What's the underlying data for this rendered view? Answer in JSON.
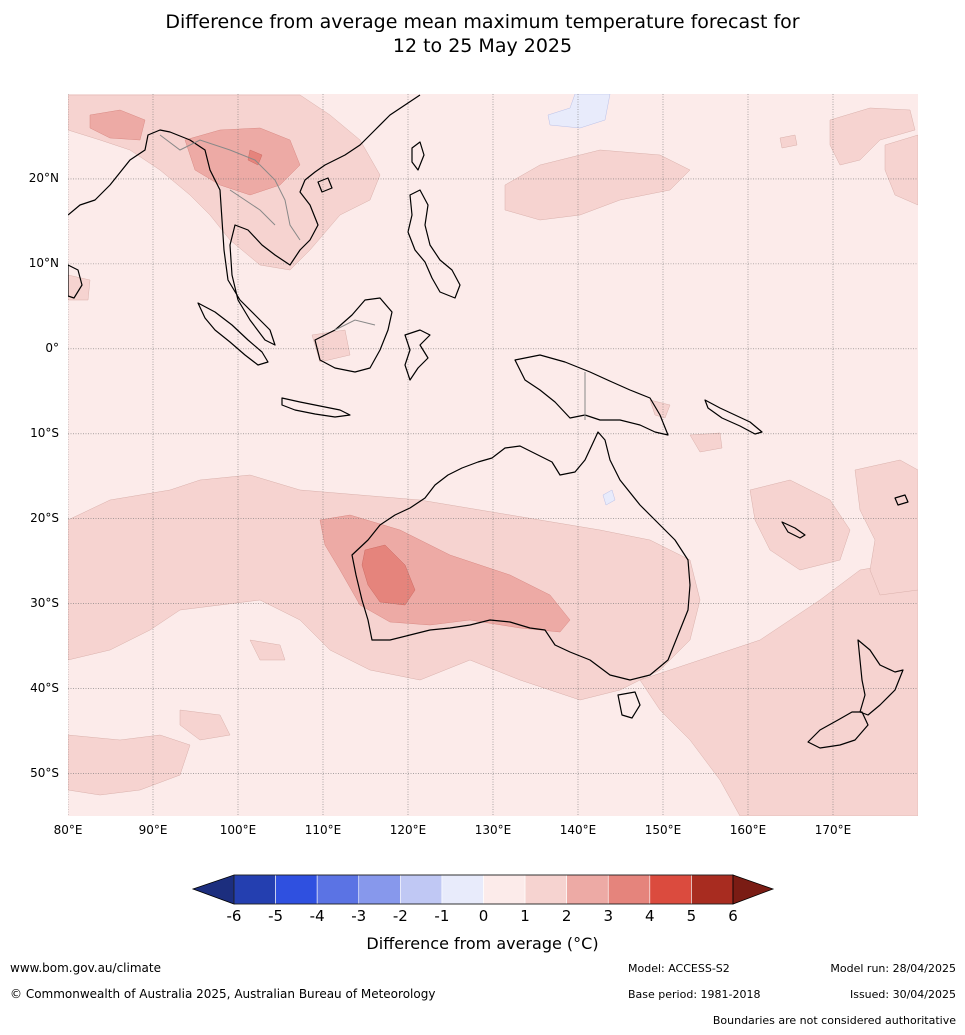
{
  "title_line1": "Difference from average mean maximum temperature forecast for",
  "title_line2": "12 to 25 May 2025",
  "map": {
    "lon_range": [
      80,
      180
    ],
    "lat_range": [
      -55,
      30
    ],
    "lat_labels": [
      {
        "lat": 20,
        "text": "20°N"
      },
      {
        "lat": 10,
        "text": "10°N"
      },
      {
        "lat": 0,
        "text": "0°"
      },
      {
        "lat": -10,
        "text": "10°S"
      },
      {
        "lat": -20,
        "text": "20°S"
      },
      {
        "lat": -30,
        "text": "30°S"
      },
      {
        "lat": -40,
        "text": "40°S"
      },
      {
        "lat": -50,
        "text": "50°S"
      }
    ],
    "lon_labels": [
      {
        "lon": 80,
        "text": "80°E"
      },
      {
        "lon": 90,
        "text": "90°E"
      },
      {
        "lon": 100,
        "text": "100°E"
      },
      {
        "lon": 110,
        "text": "110°E"
      },
      {
        "lon": 120,
        "text": "120°E"
      },
      {
        "lon": 130,
        "text": "130°E"
      },
      {
        "lon": 140,
        "text": "140°E"
      },
      {
        "lon": 150,
        "text": "150°E"
      },
      {
        "lon": 160,
        "text": "160°E"
      },
      {
        "lon": 170,
        "text": "170°E"
      }
    ]
  },
  "colorbar": {
    "ticks": [
      "-6",
      "-5",
      "-4",
      "-3",
      "-2",
      "-1",
      "0",
      "1",
      "2",
      "3",
      "4",
      "5",
      "6"
    ],
    "colors": [
      "#243fb0",
      "#2f50e0",
      "#5b73e4",
      "#8798ec",
      "#c0c8f4",
      "#e8ebfb",
      "#fcebea",
      "#f6d3d0",
      "#edaaa5",
      "#e5847c",
      "#db4b3e",
      "#a82c20"
    ],
    "under_color": "#1c2e7e",
    "over_color": "#7a1c14",
    "label": "Difference from average ($^\\circ$C)",
    "label_display": "Difference from average (°C)"
  },
  "footer": {
    "website": "www.bom.gov.au/climate",
    "copyright": "© Commonwealth of Australia 2025, Australian Bureau of Meteorology",
    "model": "Model: ACCESS-S2",
    "base_period": "Base period: 1981-2018",
    "model_run": "Model run: 28/04/2025",
    "issued": "Issued: 30/04/2025",
    "disclaimer": "Boundaries are not considered authoritative"
  }
}
